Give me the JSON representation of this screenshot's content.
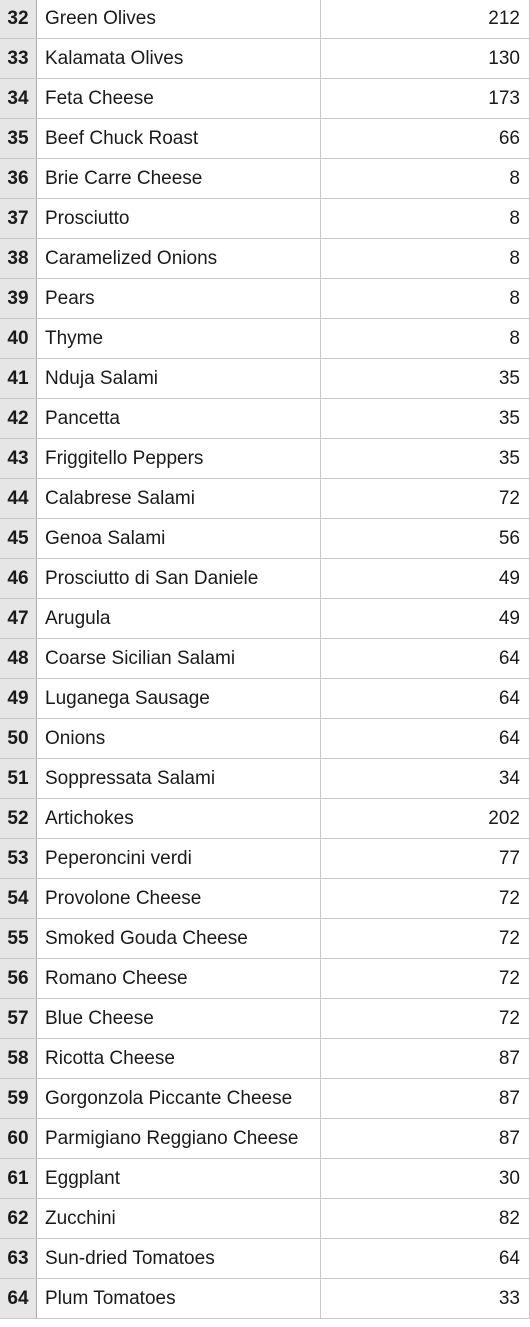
{
  "rows": [
    {
      "num": "32",
      "name": "Green Olives",
      "count": "212"
    },
    {
      "num": "33",
      "name": "Kalamata Olives",
      "count": "130"
    },
    {
      "num": "34",
      "name": "Feta Cheese",
      "count": "173"
    },
    {
      "num": "35",
      "name": "Beef Chuck Roast",
      "count": "66"
    },
    {
      "num": "36",
      "name": "Brie Carre Cheese",
      "count": "8"
    },
    {
      "num": "37",
      "name": "Prosciutto",
      "count": "8"
    },
    {
      "num": "38",
      "name": "Caramelized Onions",
      "count": "8"
    },
    {
      "num": "39",
      "name": "Pears",
      "count": "8"
    },
    {
      "num": "40",
      "name": "Thyme",
      "count": "8"
    },
    {
      "num": "41",
      "name": "Nduja Salami",
      "count": "35"
    },
    {
      "num": "42",
      "name": "Pancetta",
      "count": "35"
    },
    {
      "num": "43",
      "name": "Friggitello Peppers",
      "count": "35"
    },
    {
      "num": "44",
      "name": "Calabrese Salami",
      "count": "72"
    },
    {
      "num": "45",
      "name": "Genoa Salami",
      "count": "56"
    },
    {
      "num": "46",
      "name": "Prosciutto di San Daniele",
      "count": "49"
    },
    {
      "num": "47",
      "name": "Arugula",
      "count": "49"
    },
    {
      "num": "48",
      "name": "Coarse Sicilian Salami",
      "count": "64"
    },
    {
      "num": "49",
      "name": "Luganega Sausage",
      "count": "64"
    },
    {
      "num": "50",
      "name": "Onions",
      "count": "64"
    },
    {
      "num": "51",
      "name": "Soppressata Salami",
      "count": "34"
    },
    {
      "num": "52",
      "name": "Artichokes",
      "count": "202"
    },
    {
      "num": "53",
      "name": "Peperoncini verdi",
      "count": "77"
    },
    {
      "num": "54",
      "name": "Provolone Cheese",
      "count": "72"
    },
    {
      "num": "55",
      "name": "Smoked Gouda Cheese",
      "count": "72"
    },
    {
      "num": "56",
      "name": "Romano Cheese",
      "count": "72"
    },
    {
      "num": "57",
      "name": "Blue Cheese",
      "count": "72"
    },
    {
      "num": "58",
      "name": "Ricotta Cheese",
      "count": "87"
    },
    {
      "num": "59",
      "name": "Gorgonzola Piccante Cheese",
      "count": "87"
    },
    {
      "num": "60",
      "name": "Parmigiano Reggiano Cheese",
      "count": "87"
    },
    {
      "num": "61",
      "name": "Eggplant",
      "count": "30"
    },
    {
      "num": "62",
      "name": "Zucchini",
      "count": "82"
    },
    {
      "num": "63",
      "name": "Sun-dried Tomatoes",
      "count": "64"
    },
    {
      "num": "64",
      "name": "Plum Tomatoes",
      "count": "33"
    }
  ]
}
